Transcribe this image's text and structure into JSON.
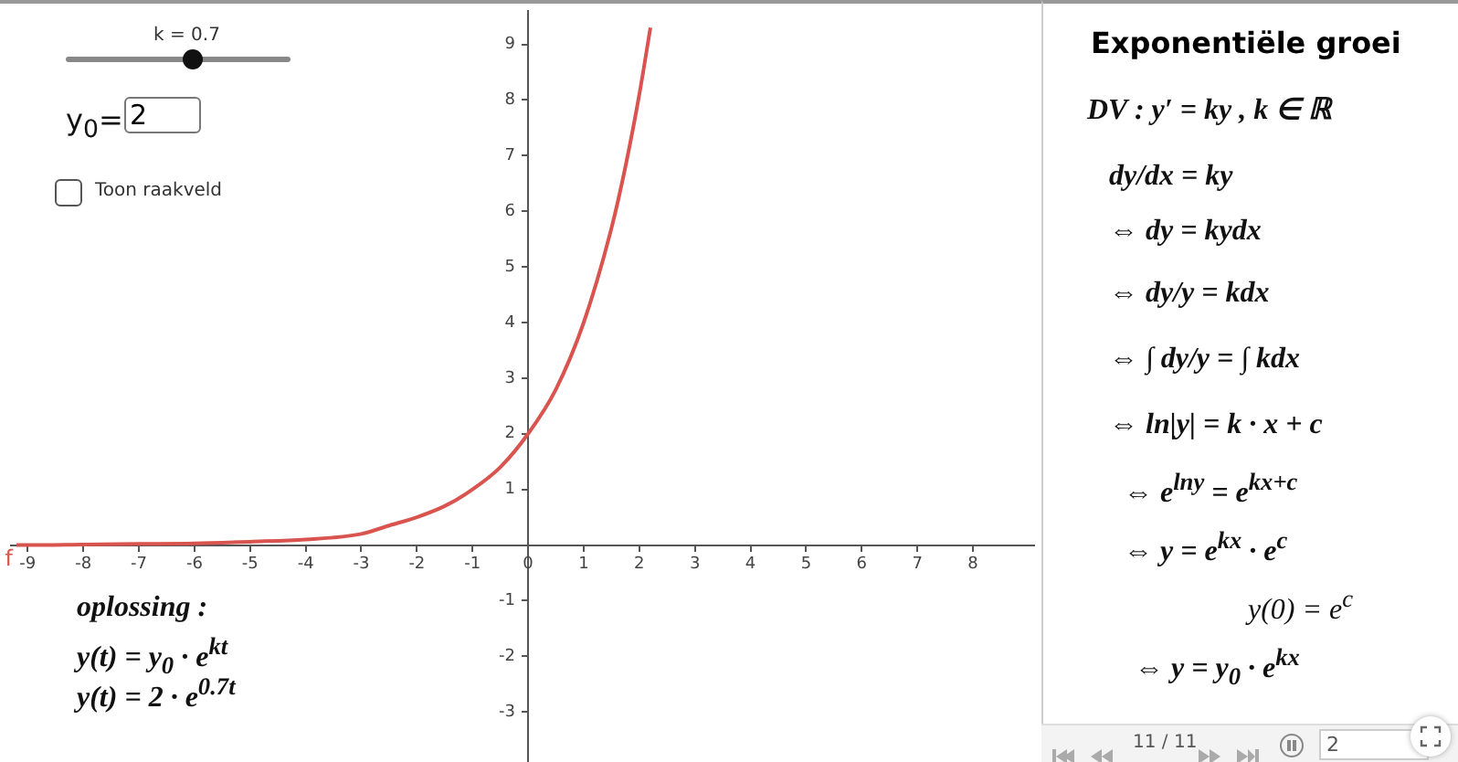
{
  "chart_data": {
    "type": "line",
    "title": "Exponentiële groei",
    "xlim": [
      -9.3,
      9.1
    ],
    "ylim": [
      -3.9,
      9.6
    ],
    "xticks": [
      -9,
      -8,
      -7,
      -6,
      -5,
      -4,
      -3,
      -2,
      -1,
      0,
      1,
      2,
      3,
      4,
      5,
      6,
      7,
      8
    ],
    "yticks": [
      -3,
      -2,
      -1,
      {
        "value": 0,
        "label": null
      },
      1,
      2,
      3,
      4,
      5,
      6,
      7,
      8,
      9
    ],
    "grid": false,
    "marker": "none",
    "series": [
      {
        "name": "f",
        "color": "#d9534f",
        "x": [
          -9.2,
          -9,
          -8,
          -7,
          -6,
          -5,
          -4,
          -3,
          -2.5,
          -2,
          -1.5,
          -1,
          -0.5,
          0,
          0.5,
          1,
          1.5,
          1.75,
          2,
          2.2
        ],
        "values": [
          0,
          0,
          0.01,
          0.02,
          0.03,
          0.06,
          0.1,
          0.2,
          0.35,
          0.5,
          0.7,
          1,
          1.4,
          2,
          2.8,
          4,
          5.7,
          6.8,
          8.1,
          9.3
        ]
      }
    ],
    "annotations": [
      "k = 0.7",
      "y$_{0}$=",
      "2",
      "Toon raakveld",
      "oplossing :",
      "y(t) = y$_{0}$ · e$^{kt}$",
      "y(t) = 2 · e$^{0.7t}$",
      "DV : y′ = ky  , k ∈ ℝ",
      "dy/dx = ky",
      "⇔ dy = kydx",
      "⇔ dy/y = kdx",
      "⇔ ∫ dy/y = ∫ kdx",
      "⇔ ln|y| = k · x + c",
      "⇔ e$^{lny}$ = e$^{kx+c}$",
      "⇔ y = e$^{kx}$ · e$^{c}$",
      "y(0) = e$^{c}$",
      "⇔ y = y$_{0}$ · e$^{kx}$",
      "11 / 11",
      "2"
    ]
  }
}
